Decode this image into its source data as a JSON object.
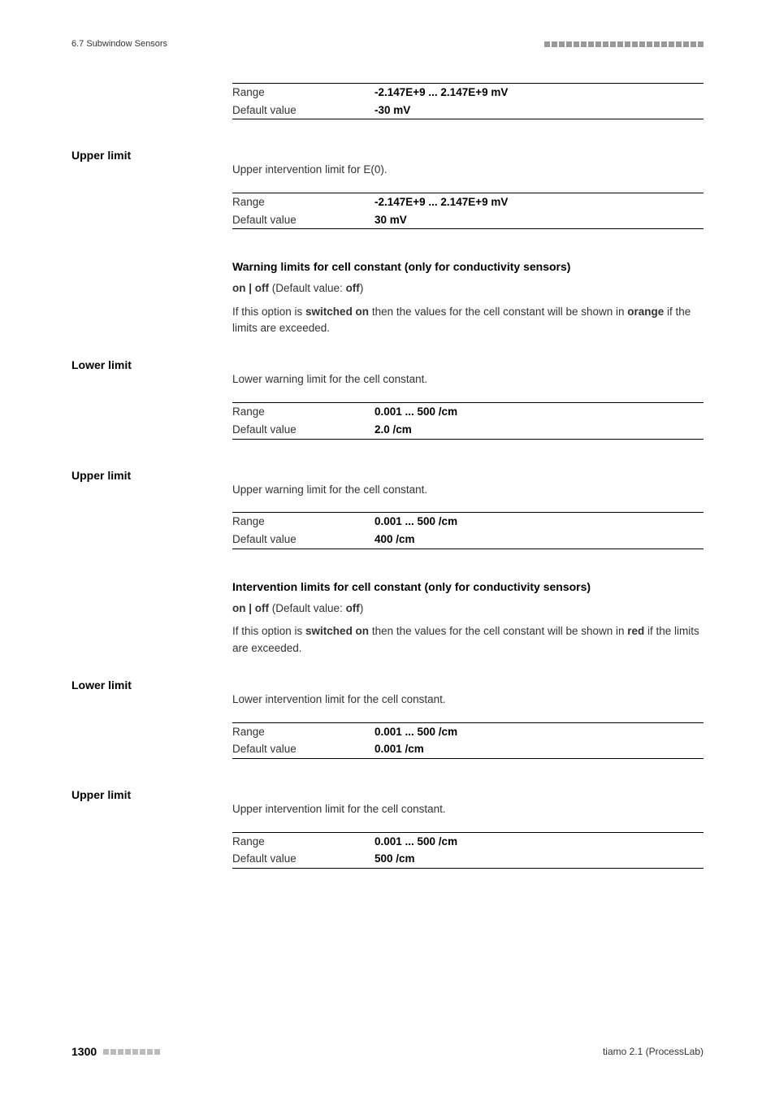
{
  "header": {
    "section": "6.7 Subwindow Sensors"
  },
  "footer": {
    "page": "1300",
    "product": "tiamo 2.1 (ProcessLab)"
  },
  "tables": {
    "t1": {
      "rangeLabel": "Range",
      "rangeValue": "-2.147E+9 ... 2.147E+9 mV",
      "defaultLabel": "Default value",
      "defaultValue": "-30 mV"
    },
    "t2": {
      "rangeLabel": "Range",
      "rangeValue": "-2.147E+9 ... 2.147E+9 mV",
      "defaultLabel": "Default value",
      "defaultValue": "30 mV"
    },
    "t3": {
      "rangeLabel": "Range",
      "rangeValue": "0.001 ... 500 /cm",
      "defaultLabel": "Default value",
      "defaultValue": "2.0 /cm"
    },
    "t4": {
      "rangeLabel": "Range",
      "rangeValue": "0.001 ... 500 /cm",
      "defaultLabel": "Default value",
      "defaultValue": "400 /cm"
    },
    "t5": {
      "rangeLabel": "Range",
      "rangeValue": "0.001 ... 500 /cm",
      "defaultLabel": "Default value",
      "defaultValue": "0.001 /cm"
    },
    "t6": {
      "rangeLabel": "Range",
      "rangeValue": "0.001 ... 500 /cm",
      "defaultLabel": "Default value",
      "defaultValue": "500 /cm"
    }
  },
  "sections": {
    "upperLimit1": {
      "heading": "Upper limit",
      "desc": "Upper intervention limit for E(0)."
    },
    "warningCell": {
      "boldHeading": "Warning limits for cell constant (only for conductivity sensors)",
      "onOffPrefix": "on | off",
      "onOffDefaultText": " (Default value: ",
      "onOffDefaultVal": "off",
      "onOffSuffix": ")",
      "explainPre": "If this option is ",
      "explainBold1": "switched on",
      "explainMid": " then the values for the cell constant will be shown in ",
      "explainBold2": "orange",
      "explainPost": " if the limits are exceeded."
    },
    "lowerLimit1": {
      "heading": "Lower limit",
      "desc": "Lower warning limit for the cell constant."
    },
    "upperLimit2": {
      "heading": "Upper limit",
      "desc": "Upper warning limit for the cell constant."
    },
    "interventionCell": {
      "boldHeading": "Intervention limits for cell constant (only for conductivity sensors)",
      "onOffPrefix": "on | off",
      "onOffDefaultText": " (Default value: ",
      "onOffDefaultVal": "off",
      "onOffSuffix": ")",
      "explainPre": "If this option is ",
      "explainBold1": "switched on",
      "explainMid": " then the values for the cell constant will be shown in ",
      "explainBold2": "red",
      "explainPost": " if the limits are exceeded."
    },
    "lowerLimit2": {
      "heading": "Lower limit",
      "desc": "Lower intervention limit for the cell constant."
    },
    "upperLimit3": {
      "heading": "Upper limit",
      "desc": "Upper intervention limit for the cell constant."
    }
  }
}
